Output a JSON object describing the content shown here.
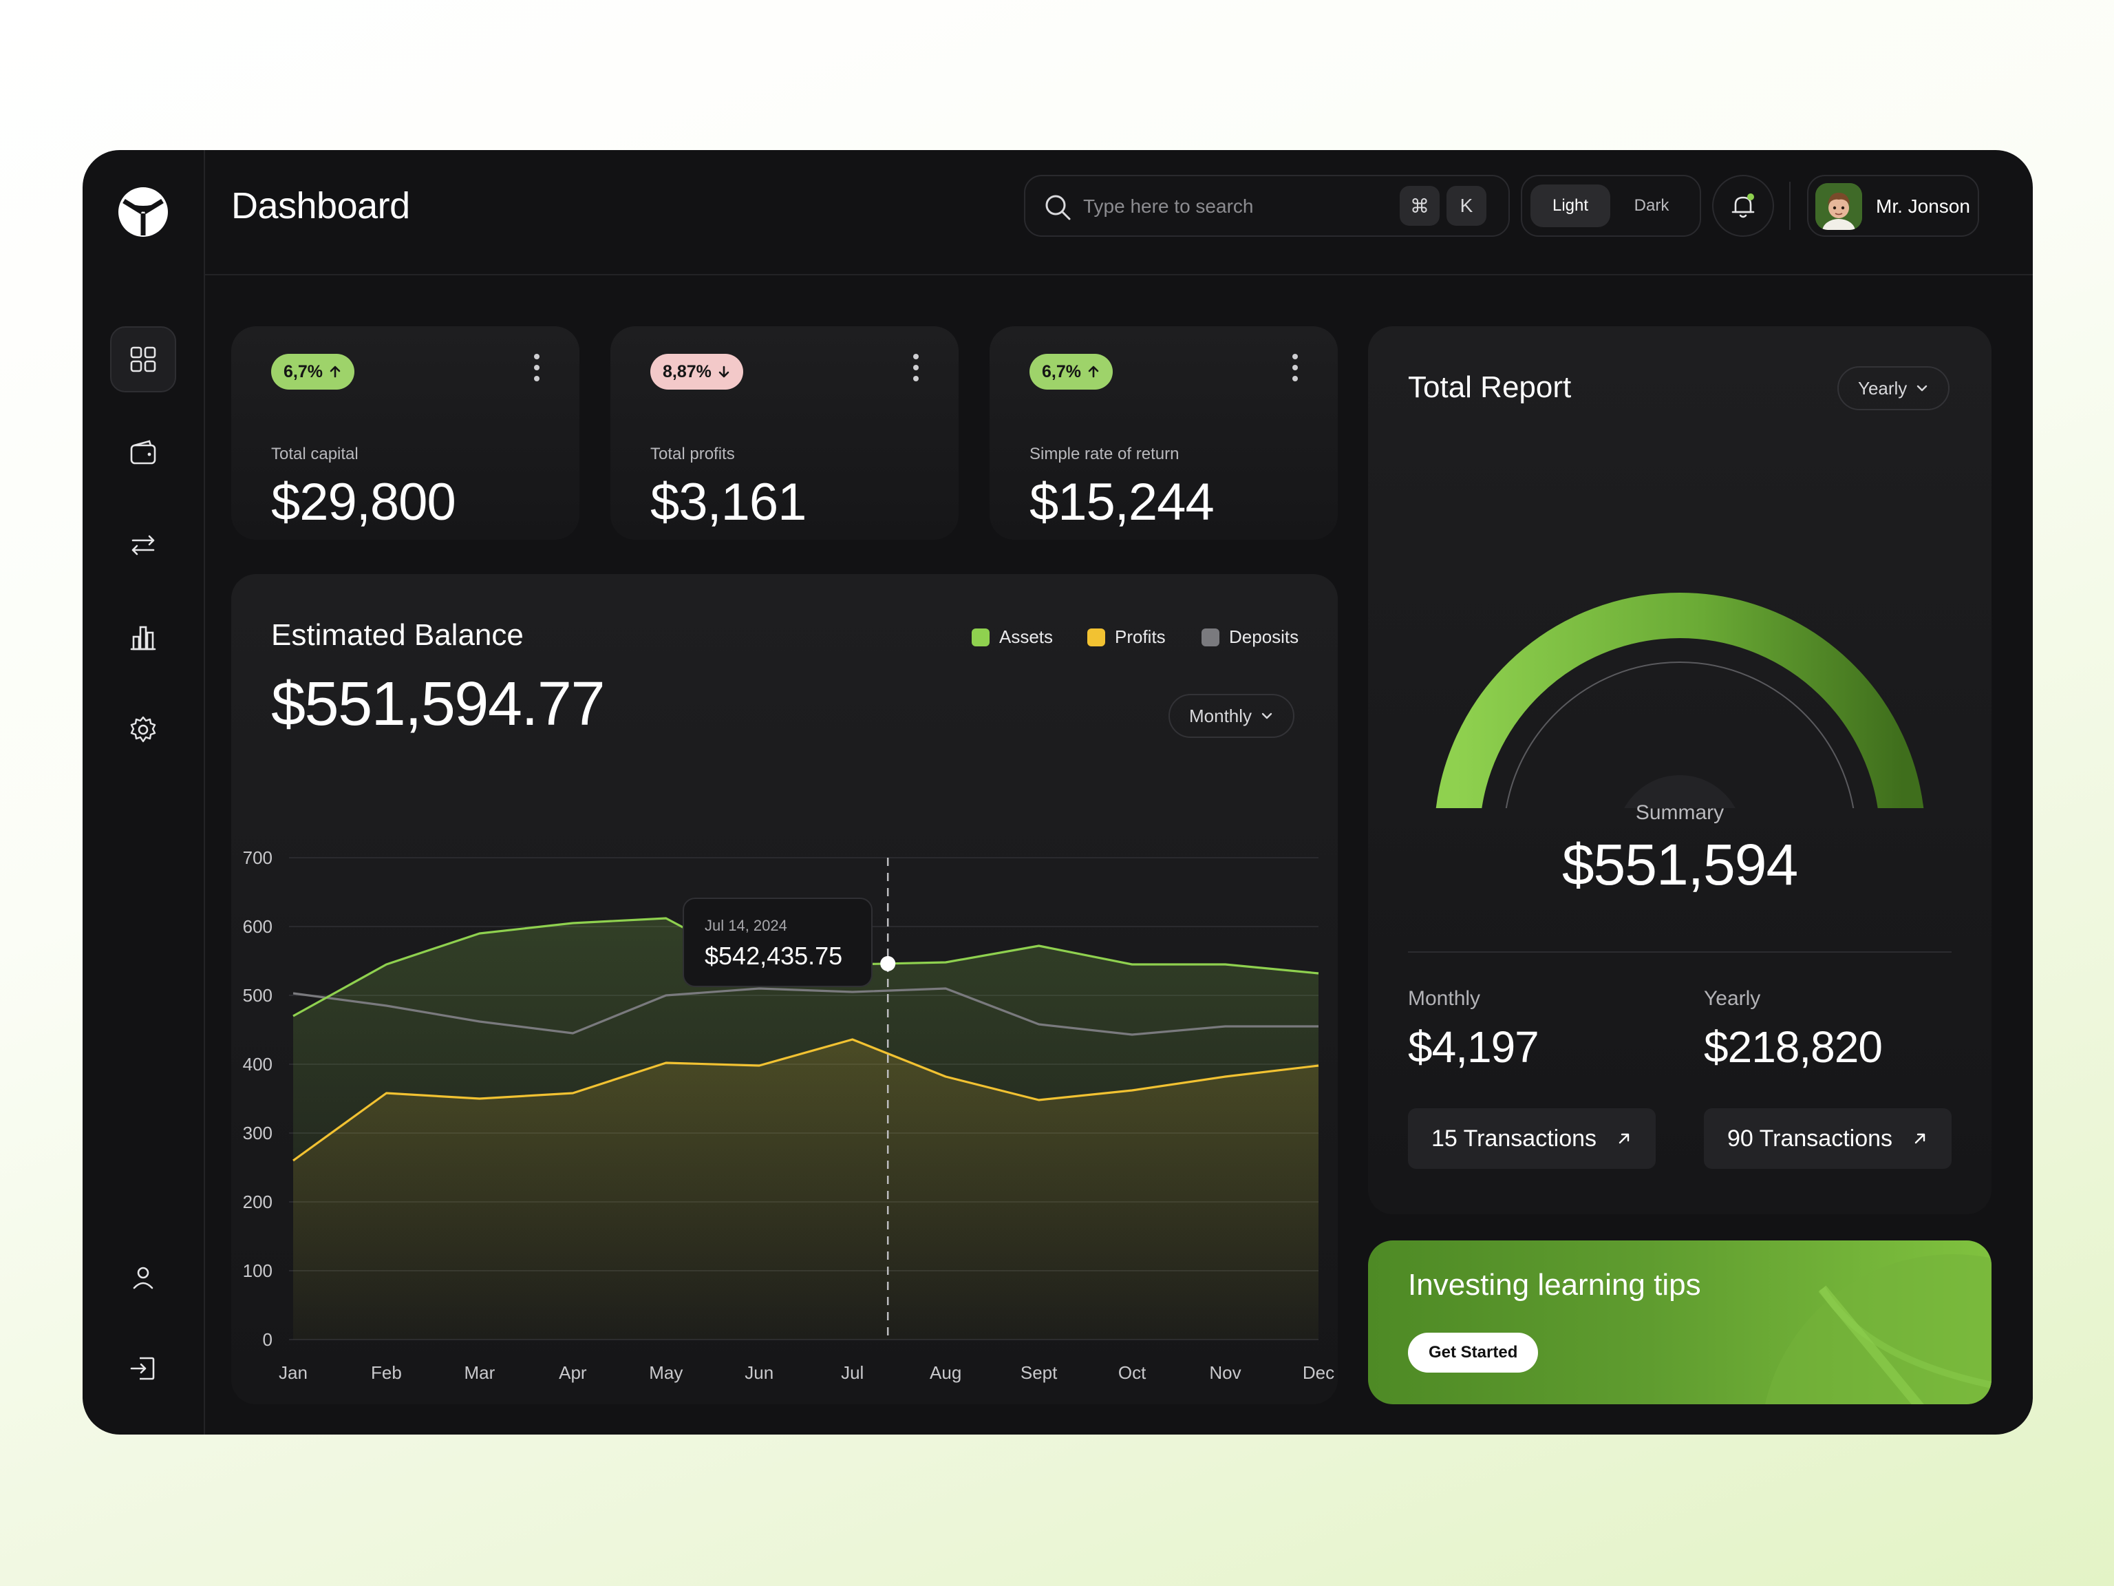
{
  "header": {
    "title": "Dashboard",
    "search_placeholder": "Type here to search",
    "shortcut_cmd": "⌘",
    "shortcut_key": "K",
    "theme_light": "Light",
    "theme_dark": "Dark",
    "user_name": "Mr. Jonson"
  },
  "sidebar": {
    "items": [
      "grid-icon",
      "wallet-icon",
      "transfer-icon",
      "chart-icon",
      "settings-icon"
    ],
    "bottom_items": [
      "user-icon",
      "logout-icon"
    ]
  },
  "stats": [
    {
      "badge": "6,7%",
      "direction": "up",
      "label": "Total capital",
      "value": "$29,800"
    },
    {
      "badge": "8,87%",
      "direction": "down",
      "label": "Total profits",
      "value": "$3,161"
    },
    {
      "badge": "6,7%",
      "direction": "up",
      "label": "Simple rate of return",
      "value": "$15,244"
    }
  ],
  "balance": {
    "title": "Estimated Balance",
    "value": "$551,594.77",
    "period": "Monthly",
    "legend": [
      "Assets",
      "Profits",
      "Deposits"
    ],
    "tooltip_date": "Jul 14, 2024",
    "tooltip_value": "$542,435.75"
  },
  "chart_data": {
    "type": "area",
    "title": "Estimated Balance",
    "categories": [
      "Jan",
      "Feb",
      "Mar",
      "Apr",
      "May",
      "Jun",
      "Jul",
      "Aug",
      "Sept",
      "Oct",
      "Nov",
      "Dec"
    ],
    "y_ticks": [
      700,
      600,
      500,
      400,
      300,
      200,
      100,
      0
    ],
    "ylim": [
      0,
      700
    ],
    "series": [
      {
        "name": "Assets",
        "color": "#8fd14f",
        "values": [
          470,
          545,
          590,
          605,
          612,
          540,
          545,
          548,
          572,
          545,
          545,
          532
        ]
      },
      {
        "name": "Profits",
        "color": "#f2c232",
        "values": [
          260,
          358,
          350,
          358,
          402,
          398,
          436,
          382,
          348,
          362,
          382,
          398
        ]
      },
      {
        "name": "Deposits",
        "color": "#7a7a7e",
        "values": [
          503,
          485,
          462,
          445,
          500,
          510,
          505,
          510,
          458,
          443,
          455,
          455
        ]
      }
    ],
    "highlight": {
      "category": "Jul",
      "series": "Assets"
    },
    "grid": true
  },
  "report": {
    "title": "Total Report",
    "period": "Yearly",
    "summary_label": "Summary",
    "summary_value": "$551,594",
    "gauge_fraction": 0.9,
    "monthly_label": "Monthly",
    "monthly_value": "$4,197",
    "yearly_label": "Yearly",
    "yearly_value": "$218,820",
    "monthly_tx": "15 Transactions",
    "yearly_tx": "90 Transactions"
  },
  "tips": {
    "title": "Investing learning tips",
    "button": "Get Started"
  },
  "colors": {
    "accent": "#8fd14f",
    "accent_dark": "#4a7d22",
    "profit": "#f2c232",
    "deposit": "#7a7a7e",
    "card": "#1b1b1d",
    "frame": "#121214"
  }
}
